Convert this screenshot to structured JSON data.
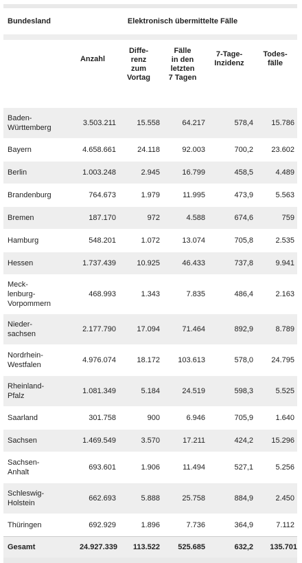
{
  "header": {
    "state_col": "Bundesland",
    "group_title": "Elektronisch übermittelte Fälle",
    "columns": [
      {
        "lines": [
          "Anzahl"
        ]
      },
      {
        "lines": [
          "Diffe-",
          "renz",
          "zum",
          "Vortag"
        ]
      },
      {
        "lines": [
          "Fälle",
          "in den",
          "letzten",
          "7 Tagen"
        ]
      },
      {
        "lines": [
          "7-Tage-",
          "Inzidenz"
        ]
      },
      {
        "lines": [
          "Todes-",
          "fälle"
        ]
      }
    ]
  },
  "rows": [
    {
      "name_lines": [
        "Baden-",
        "Württemberg"
      ],
      "cells": [
        "3.503.211",
        "15.558",
        "64.217",
        "578,4",
        "15.786"
      ]
    },
    {
      "name_lines": [
        "Bayern"
      ],
      "cells": [
        "4.658.661",
        "24.118",
        "92.003",
        "700,2",
        "23.602"
      ]
    },
    {
      "name_lines": [
        "Berlin"
      ],
      "cells": [
        "1.003.248",
        "2.945",
        "16.799",
        "458,5",
        "4.489"
      ]
    },
    {
      "name_lines": [
        "Brandenburg"
      ],
      "cells": [
        "764.673",
        "1.979",
        "11.995",
        "473,9",
        "5.563"
      ]
    },
    {
      "name_lines": [
        "Bremen"
      ],
      "cells": [
        "187.170",
        "972",
        "4.588",
        "674,6",
        "759"
      ]
    },
    {
      "name_lines": [
        "Hamburg"
      ],
      "cells": [
        "548.201",
        "1.072",
        "13.074",
        "705,8",
        "2.535"
      ]
    },
    {
      "name_lines": [
        "Hessen"
      ],
      "cells": [
        "1.737.439",
        "10.925",
        "46.433",
        "737,8",
        "9.941"
      ]
    },
    {
      "name_lines": [
        "Meck-",
        "lenburg-",
        "Vorpommern"
      ],
      "cells": [
        "468.993",
        "1.343",
        "7.835",
        "486,4",
        "2.163"
      ]
    },
    {
      "name_lines": [
        "Nieder-",
        "sachsen"
      ],
      "cells": [
        "2.177.790",
        "17.094",
        "71.464",
        "892,9",
        "8.789"
      ]
    },
    {
      "name_lines": [
        "Nordrhein-",
        "Westfalen"
      ],
      "cells": [
        "4.976.074",
        "18.172",
        "103.613",
        "578,0",
        "24.795"
      ]
    },
    {
      "name_lines": [
        "Rheinland-",
        "Pfalz"
      ],
      "cells": [
        "1.081.349",
        "5.184",
        "24.519",
        "598,3",
        "5.525"
      ]
    },
    {
      "name_lines": [
        "Saarland"
      ],
      "cells": [
        "301.758",
        "900",
        "6.946",
        "705,9",
        "1.640"
      ]
    },
    {
      "name_lines": [
        "Sachsen"
      ],
      "cells": [
        "1.469.549",
        "3.570",
        "17.211",
        "424,2",
        "15.296"
      ]
    },
    {
      "name_lines": [
        "Sachsen-",
        "Anhalt"
      ],
      "cells": [
        "693.601",
        "1.906",
        "11.494",
        "527,1",
        "5.256"
      ]
    },
    {
      "name_lines": [
        "Schleswig-",
        "Holstein"
      ],
      "cells": [
        "662.693",
        "5.888",
        "25.758",
        "884,9",
        "2.450"
      ]
    },
    {
      "name_lines": [
        "Thüringen"
      ],
      "cells": [
        "692.929",
        "1.896",
        "7.736",
        "364,9",
        "7.112"
      ]
    }
  ],
  "total": {
    "label": "Gesamt",
    "cells": [
      "24.927.339",
      "113.522",
      "525.685",
      "632,2",
      "135.701"
    ]
  }
}
